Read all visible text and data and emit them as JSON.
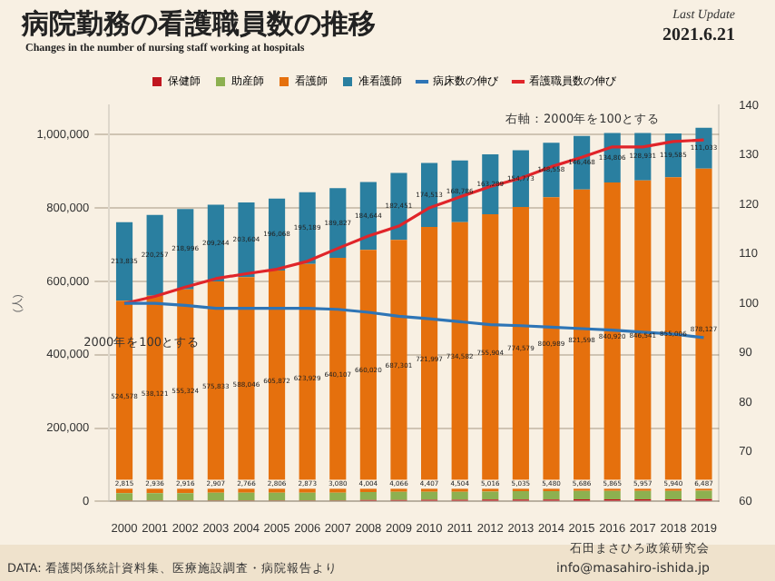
{
  "chart_data": {
    "type": "bar",
    "stacked": true,
    "title": "病院勤務の看護職員数の推移",
    "subtitle": "Changes in the number of nursing staff working at hospitals",
    "ylabel": "(人)",
    "categories": [
      "2000",
      "2001",
      "2002",
      "2003",
      "2004",
      "2005",
      "2006",
      "2007",
      "2008",
      "2009",
      "2010",
      "2011",
      "2012",
      "2013",
      "2014",
      "2015",
      "2016",
      "2017",
      "2018",
      "2019"
    ],
    "series": [
      {
        "name": "保健師",
        "color": "#c0161f",
        "values": [
          2815,
          2936,
          2916,
          2907,
          2766,
          2806,
          2873,
          3080,
          4004,
          4066,
          4407,
          4504,
          5016,
          5035,
          5480,
          5686,
          5865,
          5957,
          5940,
          6487
        ],
        "value_labels": [
          "2,815",
          "2,936",
          "2,916",
          "2,907",
          "2,766",
          "2,806",
          "2,873",
          "3,080",
          "4,004",
          "4,066",
          "4,407",
          "4,504",
          "5,016",
          "5,035",
          "5,480",
          "5,686",
          "5,865",
          "5,957",
          "5,940",
          "6,487"
        ]
      },
      {
        "name": "助産師",
        "color": "#8db050",
        "values": [
          20000,
          20000,
          20000,
          21000,
          21000,
          21000,
          21000,
          21000,
          22000,
          22000,
          22000,
          22000,
          22000,
          23000,
          23000,
          23000,
          23000,
          23000,
          23000,
          23000
        ]
      },
      {
        "name": "看護師",
        "color": "#e5700d",
        "values": [
          524578,
          538121,
          555324,
          575833,
          588046,
          605872,
          623929,
          640107,
          660020,
          687301,
          721997,
          734582,
          755904,
          774579,
          800989,
          821598,
          840920,
          846541,
          855006,
          878127
        ],
        "value_labels": [
          "524,578",
          "538,121",
          "555,324",
          "575,833",
          "588,046",
          "605,872",
          "623,929",
          "640,107",
          "660,020",
          "687,301",
          "721,997",
          "734,582",
          "755,904",
          "774,579",
          "800,989",
          "821,598",
          "840,920",
          "846,541",
          "855,006",
          "878,127"
        ]
      },
      {
        "name": "准看護師",
        "color": "#2a7fa0",
        "values": [
          213835,
          220257,
          218996,
          209244,
          203604,
          196068,
          195189,
          189827,
          184644,
          182451,
          174513,
          168786,
          163289,
          154773,
          148558,
          146468,
          134806,
          128931,
          119585,
          111033
        ],
        "value_labels": [
          "213,835",
          "220,257",
          "218,996",
          "209,244",
          "203,604",
          "196,068",
          "195,189",
          "189,827",
          "184,644",
          "182,451",
          "174,513",
          "168,786",
          "163,289",
          "154,773",
          "148,558",
          "146,468",
          "134,806",
          "128,931",
          "119,585",
          "111,033"
        ]
      },
      {
        "name": "病床数の伸び",
        "type": "line",
        "axis": "y2",
        "color": "#2e75b6",
        "values": [
          100,
          100,
          99.6,
          99,
          99,
          99,
          99,
          98.8,
          98.2,
          97.4,
          96.9,
          96.3,
          95.7,
          95.5,
          95.2,
          94.9,
          94.6,
          94.2,
          93.8,
          93.1
        ]
      },
      {
        "name": "看護職員数の伸び",
        "type": "line",
        "axis": "y2",
        "color": "#e0252a",
        "values": [
          100,
          101.4,
          103.3,
          105,
          106,
          106.9,
          108.5,
          111.1,
          113.6,
          115.6,
          119.3,
          121.5,
          123.6,
          125.3,
          127.6,
          129.5,
          131.6,
          131.6,
          132.7,
          133
        ]
      }
    ],
    "ylim": [
      0,
      1080000
    ],
    "yticks": [
      {
        "value": 0,
        "label": "0"
      },
      {
        "value": 200000,
        "label": "200,000"
      },
      {
        "value": 400000,
        "label": "400,000"
      },
      {
        "value": 600000,
        "label": "600,000"
      },
      {
        "value": 800000,
        "label": "800,000"
      },
      {
        "value": 1000000,
        "label": "1,000,000"
      }
    ],
    "y2lim": [
      60,
      140
    ],
    "y2ticks": [
      60,
      70,
      80,
      90,
      100,
      110,
      120,
      130,
      140
    ],
    "grid": "y",
    "legend": "top",
    "marker": "none",
    "line_style": "solid",
    "annotations": [
      "右軸：2000年を100とする",
      "2000年を100とする",
      "Last Update",
      "2021.6.21",
      "DATA: 看護関係統計資料集、医療施設調査・病院報告より",
      "石田まさひろ政策研究会",
      "info@masahiro-ishida.jp"
    ]
  }
}
